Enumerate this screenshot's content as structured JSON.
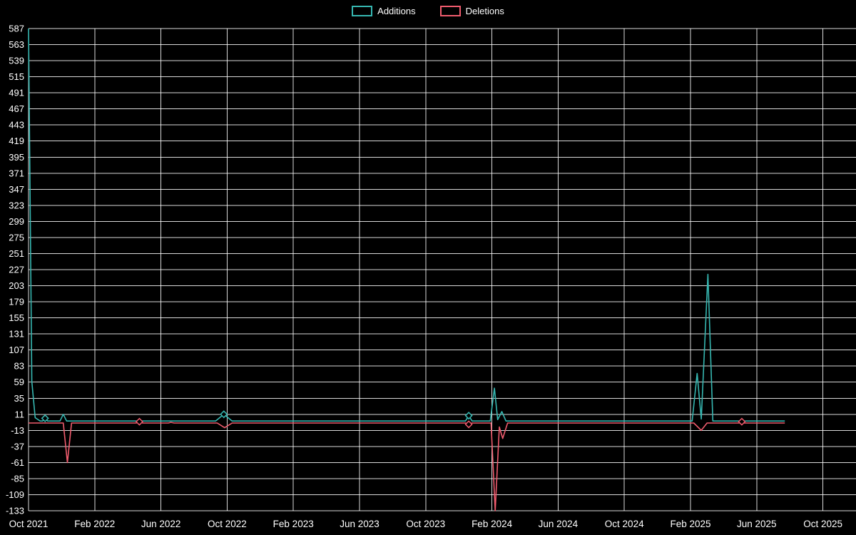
{
  "colors": {
    "background": "#000000",
    "grid": "#ffffff",
    "text": "#ffffff",
    "additions": "#36b7b1",
    "deletions": "#f05c6e"
  },
  "chart_data": {
    "type": "line",
    "title": "",
    "legend_position": "top-center",
    "grid": true,
    "x_axis": {
      "min_month": 0,
      "max_months": 50,
      "ticks": [
        {
          "label": "Oct 2021",
          "month": 0
        },
        {
          "label": "Feb 2022",
          "month": 4
        },
        {
          "label": "Jun 2022",
          "month": 8
        },
        {
          "label": "Oct 2022",
          "month": 12
        },
        {
          "label": "Feb 2023",
          "month": 16
        },
        {
          "label": "Jun 2023",
          "month": 20
        },
        {
          "label": "Oct 2023",
          "month": 24
        },
        {
          "label": "Feb 2024",
          "month": 28
        },
        {
          "label": "Jun 2024",
          "month": 32
        },
        {
          "label": "Oct 2024",
          "month": 36
        },
        {
          "label": "Feb 2025",
          "month": 40
        },
        {
          "label": "Jun 2025",
          "month": 44
        },
        {
          "label": "Oct 2025",
          "month": 48
        }
      ]
    },
    "y_axis": {
      "min": -133,
      "max": 587,
      "tick_step": 24,
      "ticks": [
        587,
        563,
        539,
        515,
        491,
        467,
        443,
        419,
        395,
        371,
        347,
        323,
        299,
        275,
        251,
        227,
        203,
        179,
        155,
        131,
        107,
        83,
        59,
        35,
        11,
        -13,
        -37,
        -61,
        -85,
        -109,
        -133
      ]
    },
    "series": [
      {
        "name": "Additions",
        "color": "#36b7b1",
        "points": [
          [
            0,
            587
          ],
          [
            0.2,
            60
          ],
          [
            0.4,
            6
          ],
          [
            0.7,
            1
          ],
          [
            0.85,
            1
          ],
          [
            1.0,
            5
          ],
          [
            1.15,
            1
          ],
          [
            1.9,
            1
          ],
          [
            2.1,
            11
          ],
          [
            2.3,
            1
          ],
          [
            6.5,
            1
          ],
          [
            11.3,
            1
          ],
          [
            11.8,
            11
          ],
          [
            12.3,
            1
          ],
          [
            26.4,
            1
          ],
          [
            26.6,
            9
          ],
          [
            26.8,
            1
          ],
          [
            27.9,
            1
          ],
          [
            28.15,
            50
          ],
          [
            28.35,
            3
          ],
          [
            28.6,
            15
          ],
          [
            28.85,
            1
          ],
          [
            40.1,
            1
          ],
          [
            40.4,
            72
          ],
          [
            40.65,
            4
          ],
          [
            41.05,
            220
          ],
          [
            41.35,
            1
          ],
          [
            43.0,
            1
          ],
          [
            43.1,
            2
          ],
          [
            43.25,
            1
          ],
          [
            45.7,
            1
          ]
        ],
        "markers": [
          [
            1.0,
            5
          ],
          [
            11.8,
            11
          ],
          [
            26.6,
            9
          ]
        ]
      },
      {
        "name": "Deletions",
        "color": "#f05c6e",
        "points": [
          [
            0,
            -2
          ],
          [
            2.1,
            -2
          ],
          [
            2.35,
            -61
          ],
          [
            2.6,
            -2
          ],
          [
            6.5,
            -2
          ],
          [
            6.7,
            0
          ],
          [
            6.9,
            -2
          ],
          [
            8.45,
            -2
          ],
          [
            8.6,
            -1
          ],
          [
            8.8,
            -2
          ],
          [
            11.4,
            -2
          ],
          [
            11.85,
            -9
          ],
          [
            12.3,
            -2
          ],
          [
            26.4,
            -2
          ],
          [
            26.6,
            -4
          ],
          [
            26.8,
            -2
          ],
          [
            27.95,
            -2
          ],
          [
            28.2,
            -133
          ],
          [
            28.45,
            -8
          ],
          [
            28.65,
            -25
          ],
          [
            28.95,
            -2
          ],
          [
            40.2,
            -2
          ],
          [
            40.65,
            -13
          ],
          [
            41.0,
            -2
          ],
          [
            42.95,
            -2
          ],
          [
            43.1,
            0
          ],
          [
            43.25,
            -2
          ],
          [
            45.7,
            -2
          ]
        ],
        "markers": [
          [
            6.7,
            0
          ],
          [
            26.6,
            -4
          ],
          [
            43.1,
            0
          ]
        ]
      }
    ]
  }
}
